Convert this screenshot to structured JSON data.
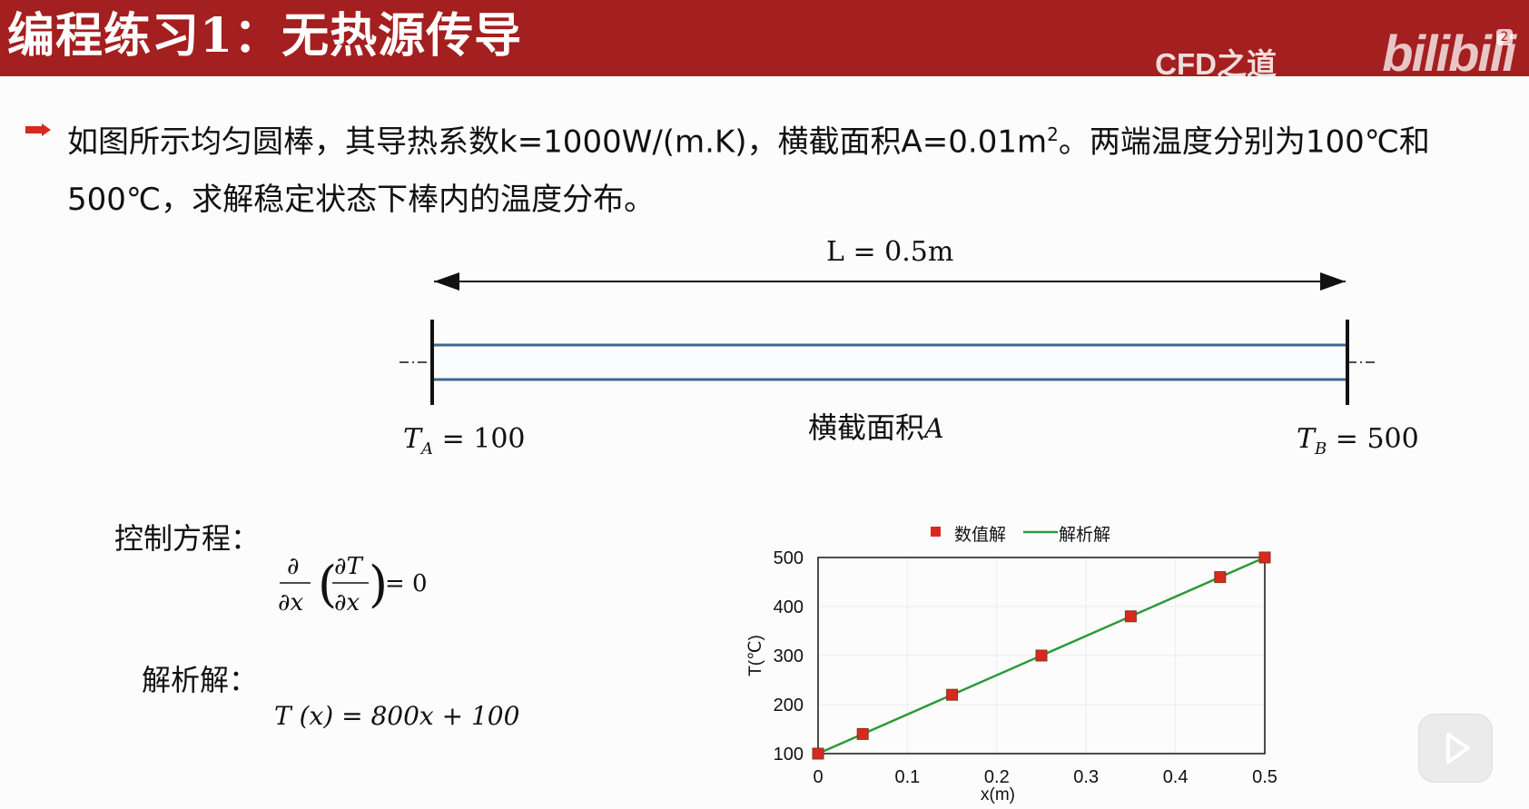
{
  "header": {
    "title": "编程练习1：无热源传导",
    "brand": "CFD之道",
    "platform": "bilibili",
    "badge": "2",
    "bg_color": "#a41f1f"
  },
  "problem": {
    "text_1": "如图所示均匀圆棒，其导热系数k=1000W/(m.K)，横截面积A=0.01m",
    "superscript": "2",
    "text_2": "。两端温度分别为100℃和",
    "text_3": "500℃，求解稳定状态下棒内的温度分布。",
    "bullet_icon": "arrow-right-icon"
  },
  "diagram": {
    "length_label": "L = 0.5m",
    "ta_label": "T",
    "ta_sub": "A",
    "ta_value": "= 100",
    "tb_label": "T",
    "tb_sub": "B",
    "tb_value": "= 500",
    "cross_section_label": "横截面积",
    "cross_section_var": "A"
  },
  "equations": {
    "governing_label": "控制方程：",
    "governing_eq": "∂/∂x (∂T/∂x) = 0",
    "governing_rhs": "= 0",
    "analytic_label": "解析解：",
    "analytic_eq": "T (x) = 800x + 100"
  },
  "chart_data": {
    "type": "line",
    "xlabel": "x(m)",
    "ylabel": "T(℃)",
    "xlim": [
      0,
      0.5
    ],
    "ylim": [
      100,
      500
    ],
    "xticks": [
      "0",
      "0.1",
      "0.2",
      "0.3",
      "0.4",
      "0.5"
    ],
    "yticks": [
      "100",
      "200",
      "300",
      "400",
      "500"
    ],
    "legend_position": "top",
    "series": [
      {
        "name": "数值解",
        "kind": "scatter",
        "color": "#d9281f",
        "x": [
          0,
          0.05,
          0.15,
          0.25,
          0.35,
          0.45,
          0.5
        ],
        "y": [
          100,
          140,
          220,
          300,
          380,
          460,
          500
        ]
      },
      {
        "name": "解析解",
        "kind": "line",
        "color": "#2a9a3a",
        "x": [
          0,
          0.5
        ],
        "y": [
          100,
          500
        ]
      }
    ],
    "grid": true
  },
  "player": {
    "play_icon": "play-icon"
  }
}
